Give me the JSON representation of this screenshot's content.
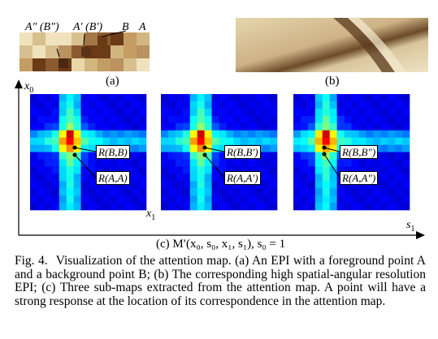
{
  "panel_a": {
    "label": "(a)",
    "annotations": [
      "A″ (B″)",
      "A′ (B′)",
      "B",
      "A"
    ],
    "colors": [
      "#e9d7a8",
      "#d2b67f",
      "#c39d63",
      "#8c5a2f",
      "#6b3a16",
      "#a37748",
      "#b9925f",
      "#d8bf8f",
      "#f0e2bc"
    ]
  },
  "panel_b": {
    "label": "(b)"
  },
  "axes": {
    "y_label": "x",
    "y_sub": "0",
    "x1_label": "x",
    "x1_sub": "1",
    "s1_label": "s",
    "s1_sub": "1"
  },
  "maps": [
    {
      "labels": [
        "R(B,B)",
        "R(A,A)"
      ]
    },
    {
      "labels": [
        "R(B,B′)",
        "R(A,A′)"
      ]
    },
    {
      "labels": [
        "R(B,B″)",
        "R(A,A″)"
      ]
    }
  ],
  "panel_c": {
    "label": "(c) M′(x₀, s₀, x₁, s₁), s₀ = 1"
  },
  "caption": {
    "label": "Fig. 4.",
    "text": "Visualization of the attention map. (a) An EPI with a foreground point A and a background point B; (b) The corresponding high spatial-angular resolution EPI; (c) Three sub-maps extracted from the attention map. A point will have a strong response at the location of its correspondence in the attention map."
  }
}
